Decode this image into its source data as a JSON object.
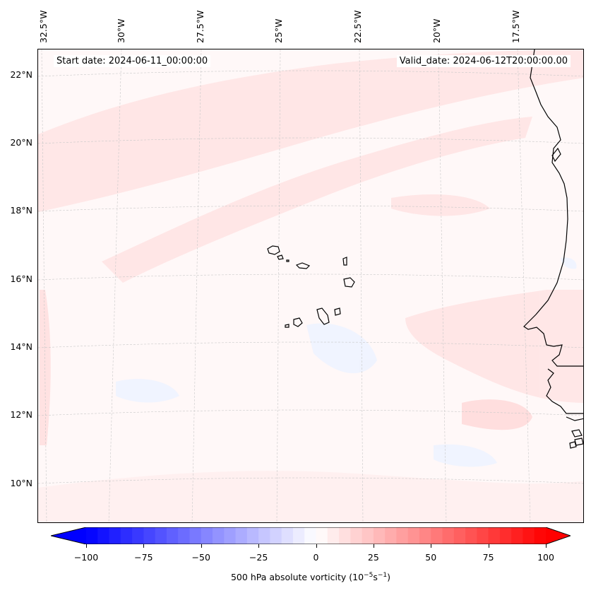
{
  "info": {
    "start": "Start date: 2024-06-11_00:00:00",
    "valid": "Valid_date: 2024-06-12T20:00:00.00"
  },
  "longitude_labels": [
    "32.5°W",
    "30°W",
    "27.5°W",
    "25°W",
    "22.5°W",
    "20°W",
    "17.5°W"
  ],
  "latitude_labels": [
    "22°N",
    "20°N",
    "18°N",
    "16°N",
    "14°N",
    "12°N",
    "10°N"
  ],
  "colorbar": {
    "label_main": "500 hPa absolute vorticity (10",
    "label_exp1": "−5",
    "label_mid": "s",
    "label_exp2": "−1",
    "label_end": ")",
    "ticks": [
      "−100",
      "−75",
      "−50",
      "−25",
      "0",
      "25",
      "50",
      "75",
      "100"
    ],
    "min": -100,
    "max": 100,
    "low_color": "#0000ff",
    "mid_color": "#ffffff",
    "high_color": "#ff0000"
  },
  "colors": {
    "land_outline": "#000000",
    "grid": "#bbbbbb",
    "field_base": "#fff8f8",
    "positive_shade": "#ffe6e6",
    "negative_shade": "#f0f4ff"
  }
}
